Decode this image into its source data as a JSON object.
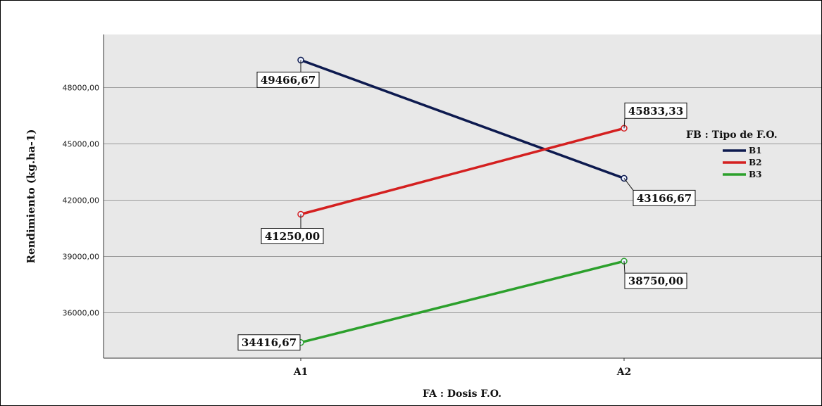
{
  "chart_data": {
    "type": "line",
    "xlabel": "FA : Dosis F.O.",
    "ylabel": "Rendimiento (kg.ha-1)",
    "categories": [
      "A1",
      "A2"
    ],
    "ylim": [
      32000,
      50500
    ],
    "yticks": [
      36000,
      39000,
      42000,
      45000,
      48000
    ],
    "ytick_labels": [
      "36000,00",
      "39000,00",
      "42000,00",
      "45000,00",
      "48000,00"
    ],
    "grid": true,
    "legend": {
      "title": "FB : Tipo de F.O.",
      "placement": "right"
    },
    "series": [
      {
        "name": "B1",
        "color": "#0d1a4f",
        "values": [
          49466.67,
          43166.67
        ],
        "labels": [
          "49466,67",
          "43166,67"
        ]
      },
      {
        "name": "B2",
        "color": "#d42020",
        "values": [
          41250.0,
          45833.33
        ],
        "labels": [
          "41250,00",
          "45833,33"
        ]
      },
      {
        "name": "B3",
        "color": "#2ca02c",
        "values": [
          34416.67,
          38750.0
        ],
        "labels": [
          "34416,67",
          "38750,00"
        ]
      }
    ]
  }
}
